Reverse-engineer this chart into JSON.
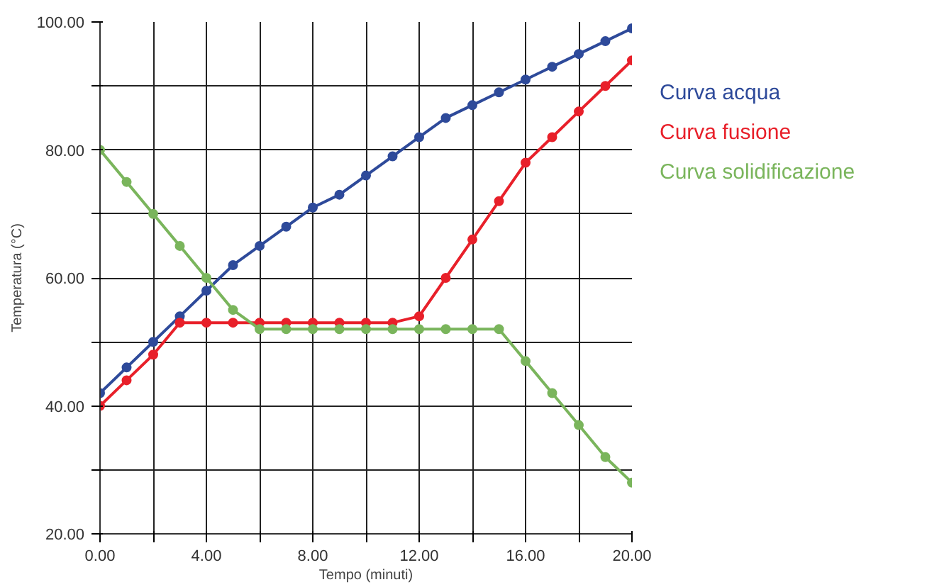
{
  "chart_data": {
    "type": "line",
    "xlabel": "Tempo (minuti)",
    "ylabel": "Temperatura (°C)",
    "x": [
      0,
      1,
      2,
      3,
      4,
      5,
      6,
      7,
      8,
      9,
      10,
      11,
      12,
      13,
      14,
      15,
      16,
      17,
      18,
      19,
      20
    ],
    "series": [
      {
        "name": "Curva acqua",
        "color": "#2e4a9a",
        "values": [
          42,
          46,
          50,
          54,
          58,
          62,
          65,
          68,
          71,
          73,
          76,
          79,
          82,
          85,
          87,
          89,
          91,
          93,
          95,
          97,
          99
        ]
      },
      {
        "name": "Curva fusione",
        "color": "#e8202a",
        "values": [
          40,
          44,
          48,
          53,
          53,
          53,
          53,
          53,
          53,
          53,
          53,
          53,
          54,
          60,
          66,
          72,
          78,
          82,
          86,
          90,
          94
        ]
      },
      {
        "name": "Curva solidificazione",
        "color": "#7ab55c",
        "values": [
          80,
          75,
          70,
          65,
          60,
          55,
          52,
          52,
          52,
          52,
          52,
          52,
          52,
          52,
          52,
          52,
          47,
          42,
          37,
          32,
          28
        ]
      }
    ],
    "xlim": [
      0,
      20
    ],
    "ylim": [
      20,
      100
    ],
    "xticks": [
      {
        "value": 0,
        "label": "0.00"
      },
      {
        "value": 2,
        "label": null
      },
      {
        "value": 4,
        "label": "4.00"
      },
      {
        "value": 6,
        "label": null
      },
      {
        "value": 8,
        "label": "8.00"
      },
      {
        "value": 10,
        "label": null
      },
      {
        "value": 12,
        "label": "12.00"
      },
      {
        "value": 14,
        "label": null
      },
      {
        "value": 16,
        "label": "16.00"
      },
      {
        "value": 18,
        "label": null
      },
      {
        "value": 20,
        "label": "20.00"
      }
    ],
    "yticks": [
      {
        "value": 20,
        "label": "20.00"
      },
      {
        "value": 30,
        "label": null
      },
      {
        "value": 40,
        "label": "40.00"
      },
      {
        "value": 50,
        "label": null
      },
      {
        "value": 60,
        "label": "60.00"
      },
      {
        "value": 70,
        "label": null
      },
      {
        "value": 80,
        "label": "80.00"
      },
      {
        "value": 90,
        "label": null
      },
      {
        "value": 100,
        "label": "100.00"
      }
    ],
    "grid": true,
    "marker": "circle",
    "line_style": "solid"
  }
}
